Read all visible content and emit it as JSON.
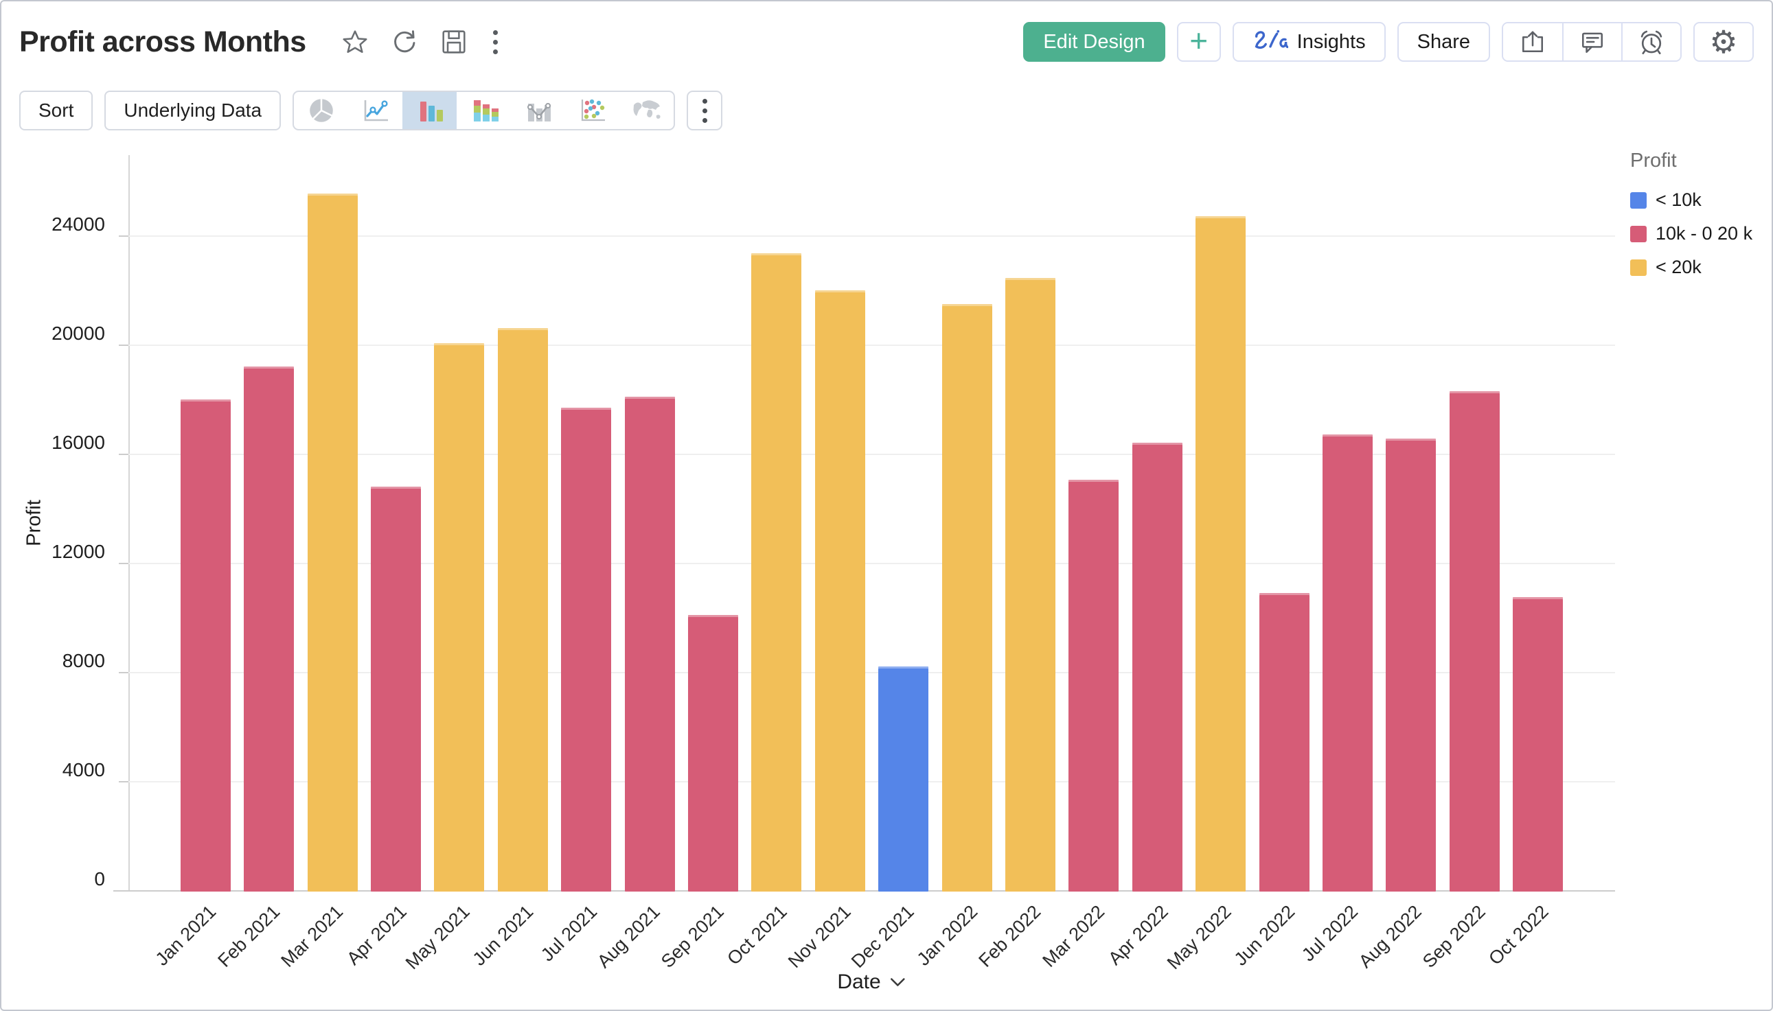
{
  "header": {
    "title": "Profit across Months",
    "title_icons": [
      "favorite-star",
      "refresh",
      "save",
      "more-vertical"
    ],
    "edit_design_label": "Edit Design",
    "add_label": "+",
    "insights_label": "Insights",
    "share_label": "Share",
    "action_icons": [
      "export",
      "comment",
      "alert",
      "settings"
    ],
    "edit_design_color": "#4db08f"
  },
  "toolbar": {
    "sort_label": "Sort",
    "underlying_data_label": "Underlying Data",
    "chart_types": [
      "pie",
      "line",
      "bar",
      "stacked-bar",
      "bar-line-combo",
      "scatter",
      "map"
    ],
    "selected_chart_type": "bar",
    "selected_background": "#ccdcec"
  },
  "chart_data": {
    "type": "bar",
    "title": "Profit across Months",
    "xlabel": "Date",
    "ylabel": "Profit",
    "ylim": [
      0,
      27000
    ],
    "yticks": [
      0,
      4000,
      8000,
      12000,
      16000,
      20000,
      24000
    ],
    "grid": true,
    "categories": [
      "Jan 2021",
      "Feb 2021",
      "Mar 2021",
      "Apr 2021",
      "May 2021",
      "Jun 2021",
      "Jul 2021",
      "Aug 2021",
      "Sep 2021",
      "Oct 2021",
      "Nov 2021",
      "Dec 2021",
      "Jan 2022",
      "Feb 2022",
      "Mar 2022",
      "Apr 2022",
      "May 2022",
      "Jun 2022",
      "Jul 2022",
      "Aug 2022",
      "Sep 2022",
      "Oct 2022"
    ],
    "values": [
      18050,
      19250,
      25600,
      14850,
      20100,
      20650,
      17750,
      18150,
      10150,
      23400,
      22050,
      8250,
      21550,
      22500,
      15100,
      16450,
      24750,
      10950,
      16750,
      16600,
      18350,
      10800
    ],
    "thresholds": [
      10000,
      20000
    ],
    "legend": {
      "title": "Profit",
      "position": "top-right",
      "entries": [
        {
          "label": "< 10k",
          "color": "#5585e8"
        },
        {
          "label": "10k - 0 20 k",
          "color": "#d65c77"
        },
        {
          "label": "< 20k",
          "color": "#f2bf58"
        }
      ]
    }
  }
}
